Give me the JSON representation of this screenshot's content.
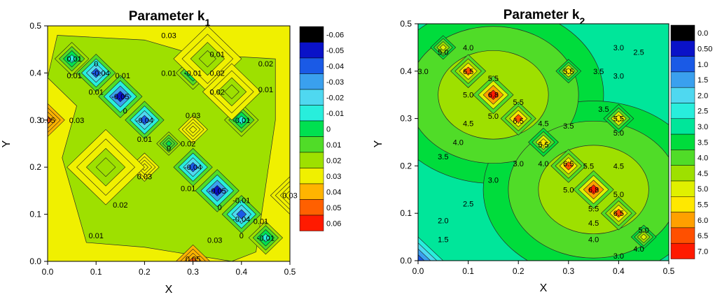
{
  "chart_data": [
    {
      "type": "heatmap",
      "title": "Parameter k",
      "title_subscript": "1",
      "xlabel": "X",
      "ylabel": "Y",
      "xlim": [
        0.0,
        0.5
      ],
      "ylim": [
        0.0,
        0.5
      ],
      "xticks": [
        "0.0",
        "0.1",
        "0.2",
        "0.3",
        "0.4",
        "0.5"
      ],
      "yticks": [
        "0.0",
        "0.1",
        "0.2",
        "0.3",
        "0.4",
        "0.5"
      ],
      "legend": {
        "position": "right",
        "labels": [
          "-0.06",
          "-0.05",
          "-0.04",
          "-0.03",
          "-0.02",
          "-0.01",
          "0",
          "0.01",
          "0.02",
          "0.03",
          "0.04",
          "0.05",
          "0.06"
        ],
        "colors": [
          "#000000",
          "#0a12c8",
          "#1a5ae6",
          "#3aa0ee",
          "#4fd8f0",
          "#28eedc",
          "#00e050",
          "#50dc28",
          "#9ee000",
          "#f0f000",
          "#ffb400",
          "#ff6000",
          "#ff1a00"
        ]
      },
      "background_value": 0.03,
      "features": [
        {
          "x": 0.05,
          "y": 0.43,
          "value": -0.01,
          "r": 0.035
        },
        {
          "x": 0.1,
          "y": 0.4,
          "value": -0.04,
          "r": 0.04
        },
        {
          "x": 0.15,
          "y": 0.35,
          "value": -0.05,
          "r": 0.045
        },
        {
          "x": 0.2,
          "y": 0.3,
          "value": -0.04,
          "r": 0.04
        },
        {
          "x": 0.3,
          "y": 0.2,
          "value": -0.04,
          "r": 0.04
        },
        {
          "x": 0.35,
          "y": 0.15,
          "value": -0.05,
          "r": 0.045
        },
        {
          "x": 0.4,
          "y": 0.1,
          "value": -0.04,
          "r": 0.04
        },
        {
          "x": 0.45,
          "y": 0.05,
          "value": -0.01,
          "r": 0.035
        },
        {
          "x": 0.3,
          "y": 0.4,
          "value": -0.01,
          "r": 0.035
        },
        {
          "x": 0.4,
          "y": 0.3,
          "value": -0.01,
          "r": 0.035
        },
        {
          "x": 0.25,
          "y": 0.25,
          "value": 0.0,
          "r": 0.025
        },
        {
          "x": 0.0,
          "y": 0.3,
          "value": 0.05,
          "r": 0.035
        },
        {
          "x": 0.3,
          "y": 0.0,
          "value": 0.05,
          "r": 0.035
        },
        {
          "x": 0.5,
          "y": 0.14,
          "value": 0.03,
          "r": 0.04
        },
        {
          "x": 0.3,
          "y": 0.28,
          "value": 0.03,
          "r": 0.03
        },
        {
          "x": 0.2,
          "y": 0.2,
          "value": 0.03,
          "r": 0.03
        },
        {
          "x": 0.12,
          "y": 0.2,
          "value": 0.02,
          "r": 0.08
        },
        {
          "x": 0.33,
          "y": 0.43,
          "value": 0.02,
          "r": 0.07
        },
        {
          "x": 0.38,
          "y": 0.36,
          "value": 0.02,
          "r": 0.06
        }
      ],
      "contour_labels": [
        {
          "text": "0.03",
          "x": 0.25,
          "y": 0.48
        },
        {
          "text": "0.01",
          "x": 0.055,
          "y": 0.43
        },
        {
          "text": "0",
          "x": 0.1,
          "y": 0.42
        },
        {
          "text": "0.01",
          "x": 0.055,
          "y": 0.395
        },
        {
          "text": "-0.04",
          "x": 0.11,
          "y": 0.4
        },
        {
          "text": "0.01",
          "x": 0.155,
          "y": 0.395
        },
        {
          "text": "0.01",
          "x": 0.1,
          "y": 0.36
        },
        {
          "text": "-0.05",
          "x": 0.15,
          "y": 0.35
        },
        {
          "text": "0",
          "x": 0.16,
          "y": 0.32
        },
        {
          "text": "-0.04",
          "x": 0.2,
          "y": 0.3
        },
        {
          "text": "0.01",
          "x": 0.2,
          "y": 0.26
        },
        {
          "text": "0.05",
          "x": 0.0,
          "y": 0.3
        },
        {
          "text": "0.03",
          "x": 0.06,
          "y": 0.3
        },
        {
          "text": "0.01",
          "x": 0.35,
          "y": 0.44
        },
        {
          "text": "0.01",
          "x": 0.25,
          "y": 0.4
        },
        {
          "text": "-0.01",
          "x": 0.3,
          "y": 0.4
        },
        {
          "text": "0.02",
          "x": 0.35,
          "y": 0.4
        },
        {
          "text": "0.02",
          "x": 0.45,
          "y": 0.42
        },
        {
          "text": "0.02",
          "x": 0.35,
          "y": 0.36
        },
        {
          "text": "0.01",
          "x": 0.45,
          "y": 0.365
        },
        {
          "text": "0.03",
          "x": 0.3,
          "y": 0.31
        },
        {
          "text": "-0.01",
          "x": 0.4,
          "y": 0.3
        },
        {
          "text": "0",
          "x": 0.25,
          "y": 0.24
        },
        {
          "text": "0.02",
          "x": 0.29,
          "y": 0.25
        },
        {
          "text": "-0.04",
          "x": 0.3,
          "y": 0.2
        },
        {
          "text": "0.03",
          "x": 0.2,
          "y": 0.18
        },
        {
          "text": "0.01",
          "x": 0.29,
          "y": 0.155
        },
        {
          "text": "-0.05",
          "x": 0.35,
          "y": 0.15
        },
        {
          "text": "0",
          "x": 0.355,
          "y": 0.115
        },
        {
          "text": "-0.01",
          "x": 0.4,
          "y": 0.13
        },
        {
          "text": "-0.04",
          "x": 0.4,
          "y": 0.09
        },
        {
          "text": "0.01",
          "x": 0.44,
          "y": 0.085
        },
        {
          "text": "-0.01",
          "x": 0.45,
          "y": 0.05
        },
        {
          "text": "0",
          "x": 0.4,
          "y": 0.055
        },
        {
          "text": "0.03",
          "x": 0.5,
          "y": 0.14
        },
        {
          "text": "0.02",
          "x": 0.15,
          "y": 0.12
        },
        {
          "text": "0.01",
          "x": 0.1,
          "y": 0.055
        },
        {
          "text": "0.03",
          "x": 0.345,
          "y": 0.045
        },
        {
          "text": "0.05",
          "x": 0.3,
          "y": 0.005
        }
      ]
    },
    {
      "type": "heatmap",
      "title": "Parameter k",
      "title_subscript": "2",
      "xlabel": "X",
      "ylabel": "Y",
      "xlim": [
        0.0,
        0.5
      ],
      "ylim": [
        0.0,
        0.5
      ],
      "xticks": [
        "0.0",
        "0.1",
        "0.2",
        "0.3",
        "0.4",
        "0.5"
      ],
      "yticks": [
        "0.0",
        "0.1",
        "0.2",
        "0.3",
        "0.4",
        "0.5"
      ],
      "legend": {
        "position": "right",
        "labels": [
          "0.0",
          "0.50",
          "1.0",
          "1.5",
          "2.0",
          "2.5",
          "3.0",
          "3.5",
          "4.0",
          "4.5",
          "5.0",
          "5.5",
          "6.0",
          "6.5",
          "7.0"
        ],
        "colors": [
          "#000000",
          "#0a12c8",
          "#1a5ae6",
          "#3aa0ee",
          "#4fd8f0",
          "#28eedc",
          "#00e69a",
          "#00dc3c",
          "#50dc28",
          "#9ee000",
          "#e0f000",
          "#ffe800",
          "#ffa000",
          "#ff5000",
          "#ff1a00"
        ]
      },
      "background_value": 3.0,
      "features": [
        {
          "x": 0.1,
          "y": 0.4,
          "value": 6.5,
          "r": 0.035
        },
        {
          "x": 0.15,
          "y": 0.35,
          "value": 6.8,
          "r": 0.04
        },
        {
          "x": 0.2,
          "y": 0.3,
          "value": 6.5,
          "r": 0.035
        },
        {
          "x": 0.3,
          "y": 0.2,
          "value": 6.5,
          "r": 0.035
        },
        {
          "x": 0.35,
          "y": 0.15,
          "value": 6.8,
          "r": 0.04
        },
        {
          "x": 0.4,
          "y": 0.1,
          "value": 6.5,
          "r": 0.035
        },
        {
          "x": 0.25,
          "y": 0.25,
          "value": 5.5,
          "r": 0.03
        },
        {
          "x": 0.3,
          "y": 0.4,
          "value": 5.5,
          "r": 0.025
        },
        {
          "x": 0.4,
          "y": 0.3,
          "value": 5.5,
          "r": 0.03
        },
        {
          "x": 0.05,
          "y": 0.45,
          "value": 5.0,
          "r": 0.025
        },
        {
          "x": 0.45,
          "y": 0.05,
          "value": 5.0,
          "r": 0.025
        },
        {
          "x": 0.0,
          "y": 0.0,
          "value": 1.0,
          "r": 0.05
        }
      ],
      "contour_labels": [
        {
          "text": "5.0",
          "x": 0.05,
          "y": 0.44
        },
        {
          "text": "4.0",
          "x": 0.1,
          "y": 0.45
        },
        {
          "text": "3.0",
          "x": 0.01,
          "y": 0.4
        },
        {
          "text": "6.5",
          "x": 0.1,
          "y": 0.4
        },
        {
          "text": "5.5",
          "x": 0.15,
          "y": 0.385
        },
        {
          "text": "5.0",
          "x": 0.1,
          "y": 0.35
        },
        {
          "text": "6.8",
          "x": 0.15,
          "y": 0.35
        },
        {
          "text": "5.5",
          "x": 0.2,
          "y": 0.335
        },
        {
          "text": "5.0",
          "x": 0.15,
          "y": 0.305
        },
        {
          "text": "6.5",
          "x": 0.2,
          "y": 0.295
        },
        {
          "text": "4.5",
          "x": 0.1,
          "y": 0.29
        },
        {
          "text": "4.0",
          "x": 0.08,
          "y": 0.25
        },
        {
          "text": "3.5",
          "x": 0.05,
          "y": 0.22
        },
        {
          "text": "3.0",
          "x": 0.4,
          "y": 0.45
        },
        {
          "text": "2.5",
          "x": 0.44,
          "y": 0.44
        },
        {
          "text": "5.5",
          "x": 0.3,
          "y": 0.4
        },
        {
          "text": "3.5",
          "x": 0.36,
          "y": 0.4
        },
        {
          "text": "3.0",
          "x": 0.4,
          "y": 0.39
        },
        {
          "text": "3.5",
          "x": 0.37,
          "y": 0.32
        },
        {
          "text": "4.5",
          "x": 0.25,
          "y": 0.29
        },
        {
          "text": "3.5",
          "x": 0.3,
          "y": 0.285
        },
        {
          "text": "5.5",
          "x": 0.4,
          "y": 0.3
        },
        {
          "text": "5.0",
          "x": 0.4,
          "y": 0.27
        },
        {
          "text": "5.5",
          "x": 0.25,
          "y": 0.245
        },
        {
          "text": "3.0",
          "x": 0.2,
          "y": 0.205
        },
        {
          "text": "4.0",
          "x": 0.25,
          "y": 0.205
        },
        {
          "text": "6.5",
          "x": 0.3,
          "y": 0.205
        },
        {
          "text": "5.5",
          "x": 0.34,
          "y": 0.2
        },
        {
          "text": "4.5",
          "x": 0.4,
          "y": 0.2
        },
        {
          "text": "3.0",
          "x": 0.15,
          "y": 0.17
        },
        {
          "text": "5.0",
          "x": 0.3,
          "y": 0.15
        },
        {
          "text": "6.8",
          "x": 0.35,
          "y": 0.15
        },
        {
          "text": "5.0",
          "x": 0.4,
          "y": 0.14
        },
        {
          "text": "2.5",
          "x": 0.1,
          "y": 0.12
        },
        {
          "text": "5.5",
          "x": 0.35,
          "y": 0.11
        },
        {
          "text": "6.5",
          "x": 0.4,
          "y": 0.1
        },
        {
          "text": "2.0",
          "x": 0.05,
          "y": 0.085
        },
        {
          "text": "4.5",
          "x": 0.35,
          "y": 0.08
        },
        {
          "text": "4.0",
          "x": 0.35,
          "y": 0.045
        },
        {
          "text": "5.0",
          "x": 0.45,
          "y": 0.065
        },
        {
          "text": "1.5",
          "x": 0.05,
          "y": 0.045
        },
        {
          "text": "4.0",
          "x": 0.44,
          "y": 0.025
        },
        {
          "text": "3.0",
          "x": 0.4,
          "y": 0.01
        }
      ]
    }
  ]
}
